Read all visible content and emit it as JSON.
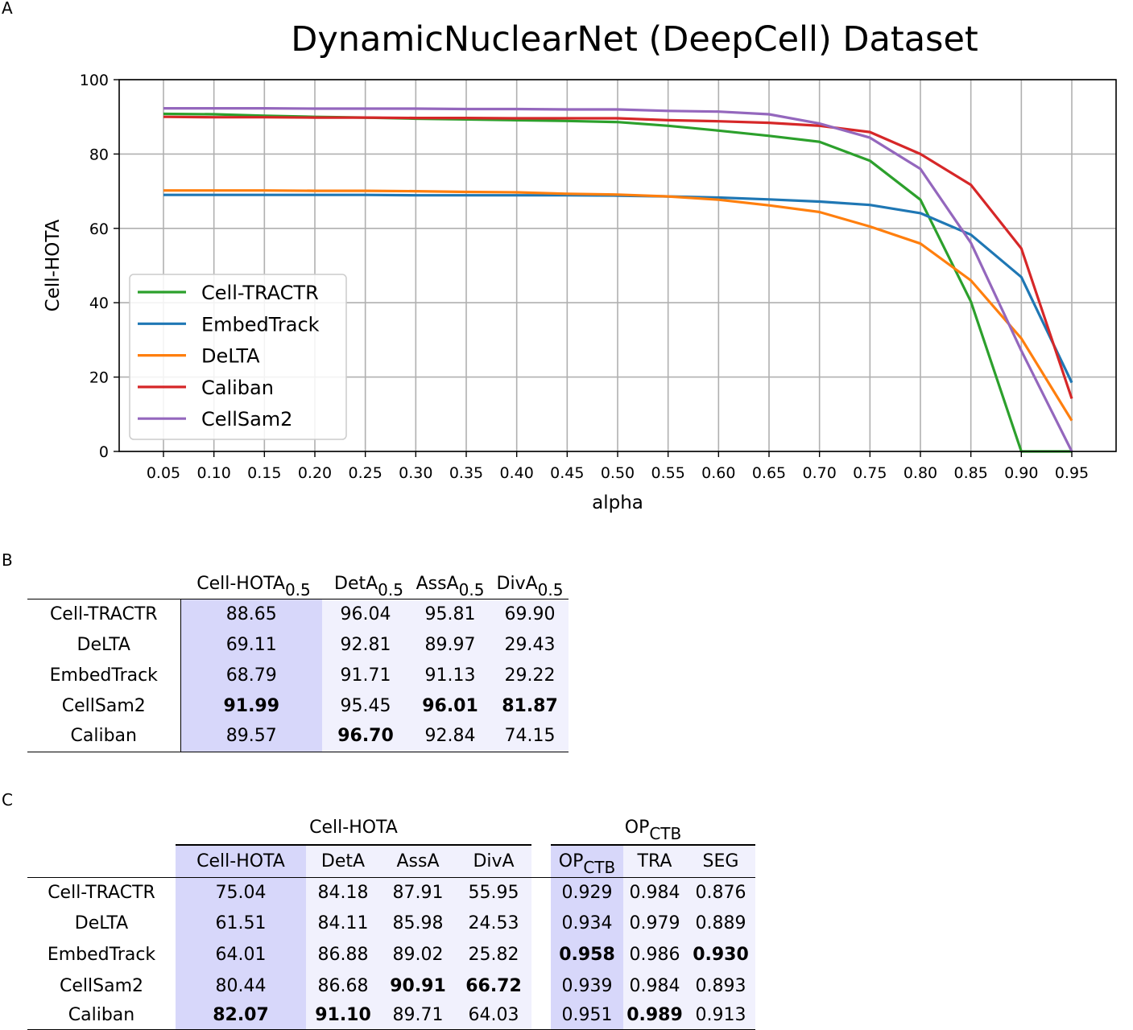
{
  "panels": {
    "a": "A",
    "b": "B",
    "c": "C"
  },
  "colors": {
    "Cell-TRACTR": "#2ca02c",
    "EmbedTrack": "#1f77b4",
    "DeLTA": "#ff7f0e",
    "Caliban": "#d62728",
    "CellSam2": "#9467bd",
    "highlight_bg": "#d7d7fa",
    "light_bg": "#f1f1fd"
  },
  "chart_data": {
    "type": "line",
    "title": "DynamicNuclearNet (DeepCell) Dataset",
    "xlabel": "alpha",
    "ylabel": "Cell-HOTA",
    "ylim": [
      0,
      100
    ],
    "yticks": [
      "0",
      "20",
      "40",
      "60",
      "80",
      "100"
    ],
    "x": [
      0.05,
      0.1,
      0.15,
      0.2,
      0.25,
      0.3,
      0.35,
      0.4,
      0.45,
      0.5,
      0.55,
      0.6,
      0.65,
      0.7,
      0.75,
      0.8,
      0.85,
      0.9,
      0.95
    ],
    "xticks": [
      "0.05",
      "0.10",
      "0.15",
      "0.20",
      "0.25",
      "0.30",
      "0.35",
      "0.40",
      "0.45",
      "0.50",
      "0.55",
      "0.60",
      "0.65",
      "0.70",
      "0.75",
      "0.80",
      "0.85",
      "0.90",
      "0.95"
    ],
    "grid": true,
    "legend_position": "lower-left",
    "series": [
      {
        "name": "Cell-TRACTR",
        "values": [
          90.8,
          90.7,
          90.3,
          90.0,
          89.8,
          89.5,
          89.3,
          89.1,
          88.9,
          88.6,
          87.6,
          86.3,
          84.9,
          83.3,
          78.2,
          67.7,
          40.3,
          0.0,
          0.0
        ]
      },
      {
        "name": "EmbedTrack",
        "values": [
          69.0,
          69.0,
          69.0,
          69.0,
          69.0,
          68.9,
          68.9,
          68.9,
          68.9,
          68.8,
          68.6,
          68.3,
          67.8,
          67.2,
          66.3,
          64.1,
          58.3,
          46.9,
          18.5
        ]
      },
      {
        "name": "DeLTA",
        "values": [
          70.2,
          70.2,
          70.2,
          70.1,
          70.1,
          70.0,
          69.8,
          69.7,
          69.3,
          69.1,
          68.6,
          67.7,
          66.2,
          64.4,
          60.5,
          55.9,
          46.0,
          30.4,
          8.3
        ]
      },
      {
        "name": "Caliban",
        "values": [
          90.0,
          89.9,
          89.9,
          89.8,
          89.8,
          89.7,
          89.7,
          89.6,
          89.6,
          89.6,
          89.1,
          88.8,
          88.4,
          87.6,
          85.9,
          80.0,
          71.7,
          54.6,
          14.2
        ]
      },
      {
        "name": "CellSam2",
        "values": [
          92.3,
          92.3,
          92.3,
          92.2,
          92.2,
          92.2,
          92.1,
          92.1,
          92.0,
          92.0,
          91.6,
          91.4,
          90.7,
          88.2,
          84.4,
          76.0,
          56.1,
          27.1,
          0.0
        ]
      }
    ]
  },
  "table_b": {
    "headers": [
      {
        "base": "Cell-HOTA",
        "sub": "0.5"
      },
      {
        "base": "DetA",
        "sub": "0.5"
      },
      {
        "base": "AssA",
        "sub": "0.5"
      },
      {
        "base": "DivA",
        "sub": "0.5"
      }
    ],
    "rows": [
      {
        "label": "Cell-TRACTR",
        "cells": [
          "88.65",
          "96.04",
          "95.81",
          "69.90"
        ],
        "bold": [
          false,
          false,
          false,
          false
        ]
      },
      {
        "label": "DeLTA",
        "cells": [
          "69.11",
          "92.81",
          "89.97",
          "29.43"
        ],
        "bold": [
          false,
          false,
          false,
          false
        ]
      },
      {
        "label": "EmbedTrack",
        "cells": [
          "68.79",
          "91.71",
          "91.13",
          "29.22"
        ],
        "bold": [
          false,
          false,
          false,
          false
        ]
      },
      {
        "label": "CellSam2",
        "cells": [
          "91.99",
          "95.45",
          "96.01",
          "81.87"
        ],
        "bold": [
          true,
          false,
          true,
          true
        ]
      },
      {
        "label": "Caliban",
        "cells": [
          "89.57",
          "96.70",
          "92.84",
          "74.15"
        ],
        "bold": [
          false,
          true,
          false,
          false
        ]
      }
    ]
  },
  "table_c": {
    "group1": "Cell-HOTA",
    "group2": {
      "base": "OP",
      "sub": "CTB"
    },
    "headers": [
      "Cell-HOTA",
      "DetA",
      "AssA",
      "DivA"
    ],
    "op_header": {
      "base": "OP",
      "sub": "CTB"
    },
    "headers2": [
      "TRA",
      "SEG"
    ],
    "rows": [
      {
        "label": "Cell-TRACTR",
        "cells": [
          "75.04",
          "84.18",
          "87.91",
          "55.95",
          "0.929",
          "0.984",
          "0.876"
        ],
        "bold": [
          false,
          false,
          false,
          false,
          false,
          false,
          false
        ]
      },
      {
        "label": "DeLTA",
        "cells": [
          "61.51",
          "84.11",
          "85.98",
          "24.53",
          "0.934",
          "0.979",
          "0.889"
        ],
        "bold": [
          false,
          false,
          false,
          false,
          false,
          false,
          false
        ]
      },
      {
        "label": "EmbedTrack",
        "cells": [
          "64.01",
          "86.88",
          "89.02",
          "25.82",
          "0.958",
          "0.986",
          "0.930"
        ],
        "bold": [
          false,
          false,
          false,
          false,
          true,
          false,
          true
        ]
      },
      {
        "label": "CellSam2",
        "cells": [
          "80.44",
          "86.68",
          "90.91",
          "66.72",
          "0.939",
          "0.984",
          "0.893"
        ],
        "bold": [
          false,
          false,
          true,
          true,
          false,
          false,
          false
        ]
      },
      {
        "label": "Caliban",
        "cells": [
          "82.07",
          "91.10",
          "89.71",
          "64.03",
          "0.951",
          "0.989",
          "0.913"
        ],
        "bold": [
          true,
          true,
          false,
          false,
          false,
          true,
          false
        ]
      }
    ]
  }
}
